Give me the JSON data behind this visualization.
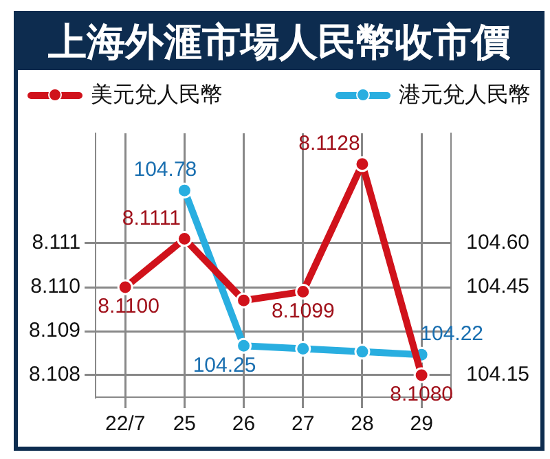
{
  "chart_data": {
    "type": "line",
    "title": "上海外滙市場人民幣收市價",
    "categories": [
      "22/7",
      "25",
      "26",
      "27",
      "28",
      "29"
    ],
    "series": [
      {
        "name": "美元兌人民幣",
        "color": "#d0121b",
        "values": [
          8.11,
          8.1111,
          8.1097,
          8.1099,
          8.1128,
          8.108
        ],
        "value_labels": [
          "8.1100",
          "8.1111",
          null,
          "8.1099",
          "8.1128",
          "8.1080"
        ]
      },
      {
        "name": "港元兌人民幣",
        "color": "#29aee0",
        "axis": "y2",
        "values": [
          null,
          104.78,
          104.25,
          104.24,
          104.23,
          104.22
        ],
        "value_labels": [
          null,
          "104.78",
          "104.25",
          null,
          null,
          "104.22"
        ]
      }
    ],
    "ylim": [
      8.1075,
      8.1135
    ],
    "yticks": [
      8.108,
      8.109,
      {
        "value": 8.11,
        "label": "8.110"
      },
      8.111
    ],
    "y2lim": [
      104.075,
      104.975
    ],
    "y2ticks": [
      {
        "value": 104.15,
        "label": "104.15"
      },
      {
        "value": 104.3,
        "label": null
      },
      {
        "value": 104.45,
        "label": "104.45"
      },
      {
        "value": 104.6,
        "label": "104.60"
      }
    ],
    "grid": true,
    "legend": "top",
    "marker": "circle",
    "line_style": "solid"
  }
}
